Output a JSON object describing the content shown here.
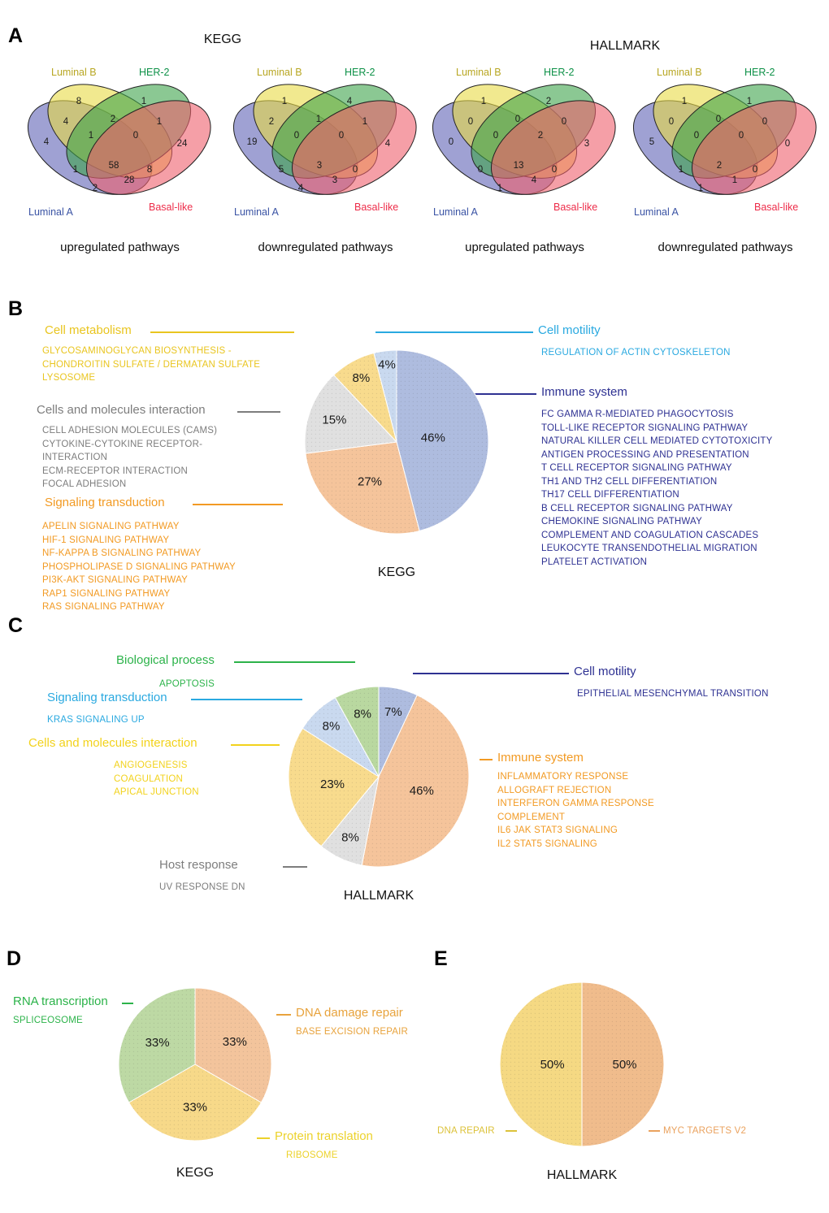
{
  "panel_a": {
    "letter": "A",
    "group_titles": [
      "KEGG",
      "HALLMARK"
    ],
    "sets": [
      {
        "label": "Luminal A",
        "text_color": "#3a53a4",
        "fill": "#5f63b5"
      },
      {
        "label": "Luminal B",
        "text_color": "#b8a723",
        "fill": "#e7da45"
      },
      {
        "label": "HER-2",
        "text_color": "#0e9148",
        "fill": "#3ea44b"
      },
      {
        "label": "Basal-like",
        "text_color": "#ed2c49",
        "fill": "#ee5f6d"
      }
    ]
  },
  "panel_b": {
    "letter": "B",
    "groups": [
      {
        "heading": "Cell metabolism",
        "color": "#e9c51f",
        "items": [
          "GLYCOSAMINOGLYCAN BIOSYNTHESIS - CHONDROITIN SULFATE / DERMATAN SULFATE",
          "LYSOSOME"
        ]
      },
      {
        "heading": "Cells and molecules interaction",
        "color": "#7d7d7d",
        "items": [
          "CELL ADHESION MOLECULES (CAMS)",
          "CYTOKINE-CYTOKINE RECEPTOR-INTERACTION",
          "ECM-RECEPTOR INTERACTION",
          "FOCAL ADHESION"
        ]
      },
      {
        "heading": "Signaling transduction",
        "color": "#f29a23",
        "items": [
          "APELIN SIGNALING PATHWAY",
          "HIF-1 SIGNALING PATHWAY",
          "NF-KAPPA B SIGNALING PATHWAY",
          "PHOSPHOLIPASE D SIGNALING PATHWAY",
          "PI3K-AKT SIGNALING PATHWAY",
          "RAP1 SIGNALING PATHWAY",
          "RAS SIGNALING PATHWAY"
        ]
      },
      {
        "heading": "Cell motility",
        "color": "#2aa9e0",
        "items": [
          "REGULATION OF ACTIN CYTOSKELETON"
        ]
      },
      {
        "heading": "Immune system",
        "color": "#2e3192",
        "items": [
          "FC GAMMA R-MEDIATED PHAGOCYTOSIS",
          "TOLL-LIKE RECEPTOR SIGNALING PATHWAY",
          "NATURAL KILLER CELL MEDIATED CYTOTOXICITY",
          "ANTIGEN PROCESSING AND PRESENTATION",
          "T CELL RECEPTOR SIGNALING PATHWAY",
          "TH1 AND TH2 CELL DIFFERENTIATION",
          "TH17 CELL DIFFERENTIATION",
          "B CELL RECEPTOR SIGNALING PATHWAY",
          "CHEMOKINE SIGNALING PATHWAY",
          "COMPLEMENT AND COAGULATION CASCADES",
          "LEUKOCYTE TRANSENDOTHELIAL MIGRATION",
          "PLATELET ACTIVATION"
        ]
      }
    ]
  },
  "panel_c": {
    "letter": "C",
    "groups": [
      {
        "heading": "Biological process",
        "color": "#2cb34a",
        "items": [
          "APOPTOSIS"
        ]
      },
      {
        "heading": "Signaling transduction",
        "color": "#2aa9e0",
        "items": [
          "KRAS SIGNALING UP"
        ]
      },
      {
        "heading": "Cells and molecules interaction",
        "color": "#f2d21c",
        "items": [
          "ANGIOGENESIS",
          "COAGULATION",
          "APICAL JUNCTION"
        ]
      },
      {
        "heading": "Host response",
        "color": "#7d7d7d",
        "items": [
          "UV RESPONSE DN"
        ]
      },
      {
        "heading": "Cell motility",
        "color": "#2e3192",
        "items": [
          "EPITHELIAL MESENCHYMAL TRANSITION"
        ]
      },
      {
        "heading": "Immune system",
        "color": "#f29a23",
        "items": [
          "INFLAMMATORY RESPONSE",
          "ALLOGRAFT REJECTION",
          "INTERFERON GAMMA RESPONSE",
          "COMPLEMENT",
          "IL6 JAK STAT3 SIGNALING",
          "IL2 STAT5 SIGNALING"
        ]
      }
    ]
  },
  "panel_d": {
    "letter": "D",
    "groups": [
      {
        "heading": "RNA transcription",
        "color": "#2cb34a",
        "items": [
          "SPLICEOSOME"
        ]
      },
      {
        "heading": "DNA damage repair",
        "color": "#e8a33d",
        "items": [
          "BASE EXCISION REPAIR"
        ]
      },
      {
        "heading": "Protein translation",
        "color": "#ecd22b",
        "items": [
          "RIBOSOME"
        ]
      }
    ]
  },
  "panel_e": {
    "letter": "E",
    "labels": [
      {
        "text": "DNA REPAIR",
        "color": "#dcc23a"
      },
      {
        "text": "MYC TARGETS V2",
        "color": "#eaa25e"
      }
    ]
  },
  "chart_data": [
    {
      "type": "venn4",
      "title": "KEGG upregulated pathways",
      "caption": "upregulated pathways",
      "set_names": [
        "Luminal A",
        "Luminal B",
        "HER-2",
        "Basal-like"
      ],
      "regions": {
        "A": 4,
        "B": 8,
        "C": 1,
        "D": 24,
        "AB": 4,
        "AC": 1,
        "AD": 28,
        "BC": 2,
        "BD": 8,
        "CD": 1,
        "ABC": 1,
        "BCD": 0,
        "ACD": 2,
        "ABCD": 58
      }
    },
    {
      "type": "venn4",
      "title": "KEGG downregulated pathways",
      "caption": "downregulated pathways",
      "set_names": [
        "Luminal A",
        "Luminal B",
        "HER-2",
        "Basal-like"
      ],
      "regions": {
        "A": 19,
        "B": 1,
        "C": 4,
        "D": 4,
        "AB": 2,
        "AC": 5,
        "AD": 3,
        "BC": 1,
        "BD": 0,
        "CD": 1,
        "ABC": 0,
        "BCD": 0,
        "ACD": 4,
        "ABCD": 3
      }
    },
    {
      "type": "venn4",
      "title": "HALLMARK upregulated pathways",
      "caption": "upregulated pathways",
      "set_names": [
        "Luminal A",
        "Luminal B",
        "HER-2",
        "Basal-like"
      ],
      "regions": {
        "A": 0,
        "B": 1,
        "C": 2,
        "D": 3,
        "AB": 0,
        "AC": 0,
        "AD": 4,
        "BC": 0,
        "BD": 0,
        "CD": 0,
        "ABC": 0,
        "BCD": 2,
        "ACD": 1,
        "ABCD": 13
      }
    },
    {
      "type": "venn4",
      "title": "HALLMARK downregulated pathways",
      "caption": "downregulated pathways",
      "set_names": [
        "Luminal A",
        "Luminal B",
        "HER-2",
        "Basal-like"
      ],
      "regions": {
        "A": 5,
        "B": 1,
        "C": 1,
        "D": 0,
        "AB": 0,
        "AC": 1,
        "AD": 1,
        "BC": 0,
        "BD": 0,
        "CD": 0,
        "ABC": 0,
        "BCD": 0,
        "ACD": 1,
        "ABCD": 2
      }
    },
    {
      "type": "pie",
      "title": "KEGG",
      "start_deg": -14.4,
      "legend_position": "sides",
      "grid": false,
      "slices": [
        {
          "category": "Cell motility",
          "value": 4,
          "color": "#c9d9ef"
        },
        {
          "category": "Immune system",
          "value": 46,
          "color": "#aebcdf"
        },
        {
          "category": "Signaling transduction",
          "value": 27,
          "color": "#f5c49b"
        },
        {
          "category": "Cells and molecules interaction",
          "value": 15,
          "color": "#e0e0e0"
        },
        {
          "category": "Cell metabolism",
          "value": 8,
          "color": "#f8db8d"
        }
      ]
    },
    {
      "type": "pie",
      "title": "HALLMARK",
      "start_deg": 0,
      "legend_position": "sides",
      "grid": false,
      "slices": [
        {
          "category": "Cell motility",
          "value": 7,
          "color": "#aebcdf"
        },
        {
          "category": "Immune system",
          "value": 46,
          "color": "#f5c49b"
        },
        {
          "category": "Host response",
          "value": 8,
          "color": "#e0e0e0"
        },
        {
          "category": "Cells and molecules interaction",
          "value": 23,
          "color": "#f8db8d"
        },
        {
          "category": "Signaling transduction",
          "value": 8,
          "color": "#c9d9ef"
        },
        {
          "category": "Biological process",
          "value": 8,
          "color": "#b9d8a0"
        }
      ]
    },
    {
      "type": "pie",
      "title": "KEGG",
      "start_deg": 0,
      "legend_position": "sides",
      "grid": false,
      "slices": [
        {
          "category": "DNA damage repair",
          "pathway": "BASE EXCISION REPAIR",
          "value": 33,
          "color": "#f3c49c"
        },
        {
          "category": "Protein translation",
          "pathway": "RIBOSOME",
          "value": 33,
          "color": "#f7d989"
        },
        {
          "category": "RNA transcription",
          "pathway": "SPLICEOSOME",
          "value": 33,
          "color": "#bdd9a4"
        }
      ]
    },
    {
      "type": "pie",
      "title": "HALLMARK",
      "start_deg": 0,
      "legend_position": "sides",
      "grid": false,
      "slices": [
        {
          "category": "MYC TARGETS V2",
          "value": 50,
          "color": "#f0bc8c"
        },
        {
          "category": "DNA REPAIR",
          "value": 50,
          "color": "#f5d983"
        }
      ]
    }
  ]
}
